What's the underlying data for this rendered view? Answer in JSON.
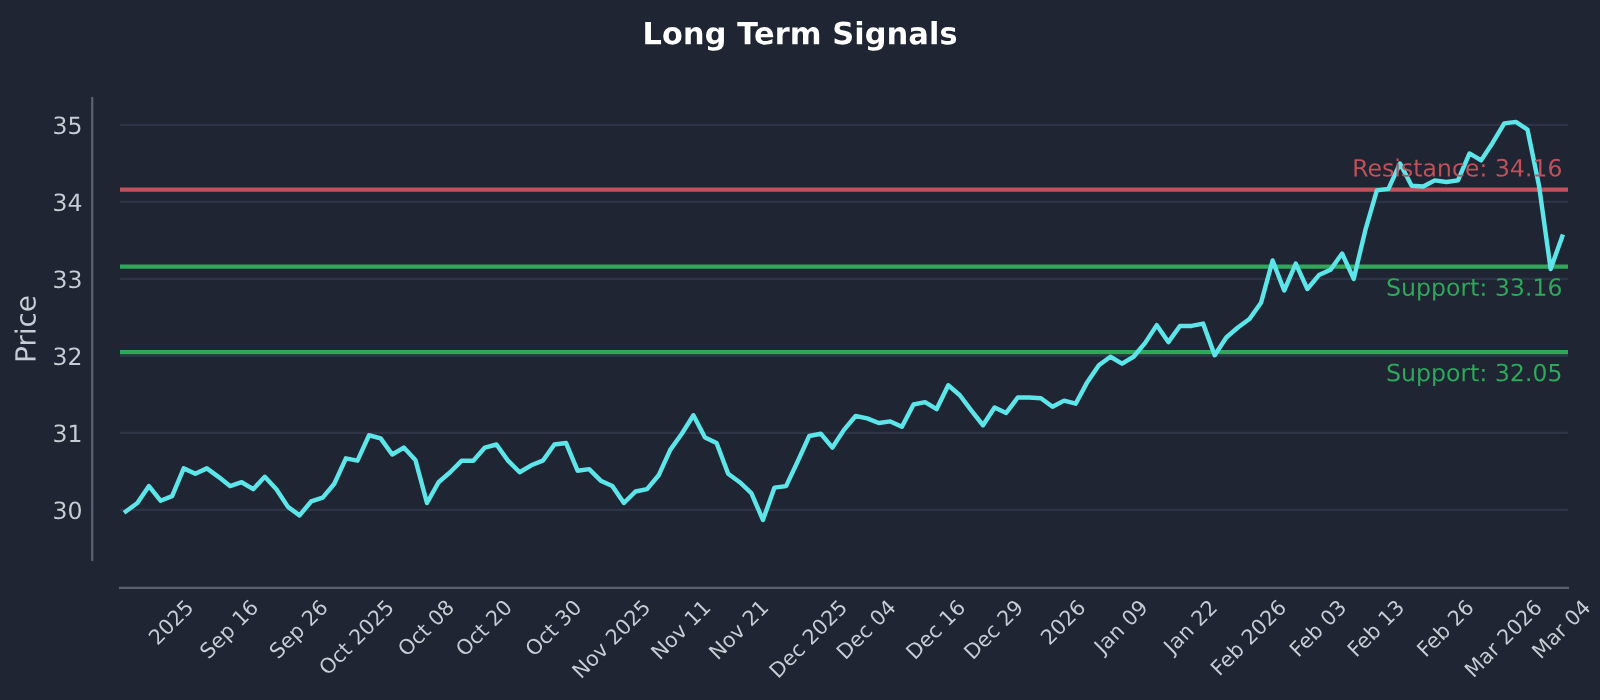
{
  "chart_data": {
    "type": "line",
    "title": "Long Term Signals",
    "ylabel": "Price",
    "categories": [
      null,
      null,
      null,
      null,
      "2025",
      null,
      null,
      null,
      null,
      "Sep 16",
      null,
      null,
      null,
      null,
      null,
      "Sep 26",
      null,
      null,
      null,
      null,
      "Oct 2025",
      null,
      null,
      null,
      null,
      null,
      "Oct 08",
      null,
      null,
      null,
      null,
      "Oct 20",
      null,
      null,
      null,
      null,
      null,
      "Oct 30",
      null,
      null,
      null,
      null,
      "Nov 2025",
      null,
      null,
      null,
      null,
      null,
      "Nov 11",
      null,
      null,
      null,
      null,
      "Nov 21",
      null,
      null,
      null,
      null,
      null,
      "Dec 2025",
      null,
      null,
      null,
      null,
      "Dec 04",
      null,
      null,
      null,
      null,
      null,
      "Dec 16",
      null,
      null,
      null,
      null,
      "Dec 29",
      null,
      null,
      null,
      null,
      null,
      "2026",
      null,
      null,
      null,
      null,
      "Jan 09",
      null,
      null,
      null,
      null,
      null,
      "Jan 22",
      null,
      null,
      null,
      null,
      "Feb 2026",
      null,
      null,
      null,
      null,
      null,
      "Feb 03",
      null,
      null,
      null,
      null,
      "Feb 13",
      null,
      null,
      null,
      null,
      null,
      "Feb 26",
      null,
      null,
      null,
      null,
      "Mar 2026",
      null,
      null,
      null,
      null,
      "Mar 04"
    ],
    "series": [
      {
        "color": "#5ce6ea",
        "values": [
          29.98,
          30.09,
          30.31,
          30.12,
          30.18,
          30.54,
          30.47,
          30.54,
          30.43,
          30.31,
          30.36,
          30.27,
          30.43,
          30.27,
          30.04,
          29.93,
          30.11,
          30.16,
          30.34,
          30.67,
          30.64,
          30.97,
          30.93,
          30.72,
          30.81,
          30.65,
          30.09,
          30.36,
          30.49,
          30.64,
          30.64,
          30.81,
          30.85,
          30.64,
          30.49,
          30.58,
          30.64,
          30.85,
          30.87,
          30.51,
          30.53,
          30.38,
          30.31,
          30.09,
          30.24,
          30.27,
          30.45,
          30.78,
          30.99,
          31.23,
          30.94,
          30.87,
          30.47,
          30.36,
          30.22,
          29.87,
          30.29,
          30.31,
          30.63,
          30.96,
          30.99,
          30.81,
          31.04,
          31.22,
          31.19,
          31.13,
          31.15,
          31.08,
          31.37,
          31.4,
          31.31,
          31.62,
          31.49,
          31.29,
          31.1,
          31.33,
          31.26,
          31.46,
          31.46,
          31.45,
          31.34,
          31.42,
          31.38,
          31.66,
          31.88,
          31.99,
          31.9,
          31.99,
          32.17,
          32.4,
          32.18,
          32.39,
          32.39,
          32.42,
          32.01,
          32.24,
          32.37,
          32.48,
          32.69,
          33.24,
          32.85,
          33.2,
          32.87,
          33.05,
          33.12,
          33.33,
          33.0,
          33.63,
          34.15,
          34.17,
          34.5,
          34.21,
          34.2,
          34.28,
          34.26,
          34.28,
          34.63,
          34.54,
          34.77,
          35.02,
          35.04,
          34.94,
          34.21,
          33.13,
          33.55
        ]
      }
    ],
    "ylim": [
      29.35,
      35.35
    ],
    "yticks": [
      30,
      31,
      32,
      33,
      34,
      35
    ],
    "grid": "y",
    "legend": false,
    "ref_lines": [
      {
        "axis": "y",
        "value": 34.16,
        "label": "Resistance: 34.16",
        "color": "#c0505a"
      },
      {
        "axis": "y",
        "value": 33.16,
        "label": "Support: 33.16",
        "color": "#2ea85a"
      },
      {
        "axis": "y",
        "value": 32.05,
        "label": "Support: 32.05",
        "color": "#2ea85a"
      }
    ]
  }
}
